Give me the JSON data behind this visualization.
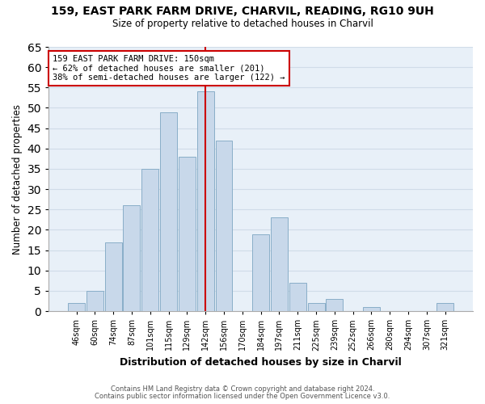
{
  "title1": "159, EAST PARK FARM DRIVE, CHARVIL, READING, RG10 9UH",
  "title2": "Size of property relative to detached houses in Charvil",
  "xlabel": "Distribution of detached houses by size in Charvil",
  "ylabel": "Number of detached properties",
  "bar_labels": [
    "46sqm",
    "60sqm",
    "74sqm",
    "87sqm",
    "101sqm",
    "115sqm",
    "129sqm",
    "142sqm",
    "156sqm",
    "170sqm",
    "184sqm",
    "197sqm",
    "211sqm",
    "225sqm",
    "239sqm",
    "252sqm",
    "266sqm",
    "280sqm",
    "294sqm",
    "307sqm",
    "321sqm"
  ],
  "bar_values": [
    2,
    5,
    17,
    26,
    35,
    49,
    38,
    54,
    42,
    0,
    19,
    23,
    7,
    2,
    3,
    0,
    1,
    0,
    0,
    0,
    2
  ],
  "bar_color": "#c8d8ea",
  "bar_edge_color": "#89aec8",
  "ylim": [
    0,
    65
  ],
  "yticks": [
    0,
    5,
    10,
    15,
    20,
    25,
    30,
    35,
    40,
    45,
    50,
    55,
    60,
    65
  ],
  "vline_x_index": 7,
  "vline_color": "#cc0000",
  "annotation_text": "159 EAST PARK FARM DRIVE: 150sqm\n← 62% of detached houses are smaller (201)\n38% of semi-detached houses are larger (122) →",
  "annotation_box_color": "white",
  "annotation_box_edge_color": "#cc0000",
  "footer1": "Contains HM Land Registry data © Crown copyright and database right 2024.",
  "footer2": "Contains public sector information licensed under the Open Government Licence v3.0.",
  "background_color": "#ffffff",
  "grid_color": "#d0dce8",
  "plot_bg_color": "#e8f0f8"
}
